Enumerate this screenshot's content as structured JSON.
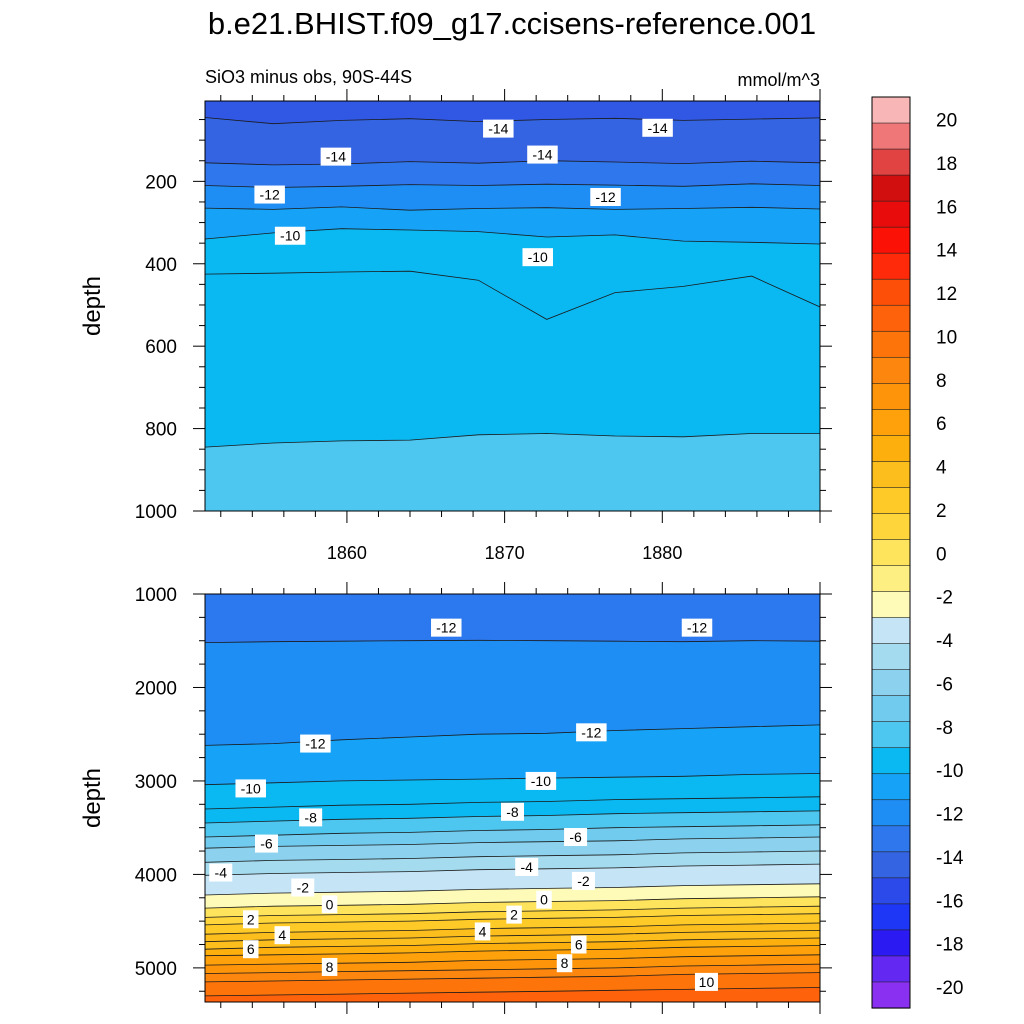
{
  "figure_title": "b.e21.BHIST.f09_g17.ccisens-reference.001",
  "colorbar": {
    "levels": [
      -20,
      -18,
      -16,
      -14,
      -12,
      -10,
      -8,
      -6,
      -4,
      -2,
      0,
      2,
      4,
      6,
      8,
      10,
      12,
      14,
      16,
      18,
      20
    ],
    "tick_labels": [
      "-20",
      "-18",
      "-16",
      "-14",
      "-12",
      "-10",
      "-8",
      "-6",
      "-4",
      "-2",
      "0",
      "2",
      "4",
      "6",
      "8",
      "10",
      "12",
      "14",
      "16",
      "18",
      "20"
    ],
    "colors": [
      "#8a30f0",
      "#6328f2",
      "#2b1bf2",
      "#1e36f5",
      "#2c4ae9",
      "#3464e2",
      "#2e77ed",
      "#1e8ef5",
      "#16a3f7",
      "#0ab8f2",
      "#4dc6f0",
      "#70cbef",
      "#8cd2ee",
      "#a4dbef",
      "#c5e5f7",
      "#fdfbb7",
      "#feef83",
      "#fee35c",
      "#fed53a",
      "#feca27",
      "#fcbe1c",
      "#fdb00d",
      "#fea10a",
      "#fd940a",
      "#fd860e",
      "#fd740a",
      "#fe620a",
      "#fe4f09",
      "#fe2a09",
      "#fb1106",
      "#e80c0c",
      "#d10f0f",
      "#e14242",
      "#ef7777",
      "#f9b6b6"
    ]
  },
  "chart_data": [
    {
      "type": "heatmap",
      "subtitle": "SiO3 minus obs, 90S-44S",
      "units": "mmol/m^3",
      "ylabel": "depth",
      "xlim": [
        1851,
        1890
      ],
      "ylim": [
        1000,
        5
      ],
      "xticks": [
        "1860",
        "1870",
        "1880"
      ],
      "yticks": [
        "200",
        "400",
        "600",
        "800",
        "1000"
      ],
      "contour_labels": [
        {
          "text": "-14",
          "x": 1869.6,
          "y": 72
        },
        {
          "text": "-14",
          "x": 1879.7,
          "y": 70
        },
        {
          "text": "-14",
          "x": 1859.3,
          "y": 140
        },
        {
          "text": "-14",
          "x": 1872.4,
          "y": 135
        },
        {
          "text": "-12",
          "x": 1855.1,
          "y": 232
        },
        {
          "text": "-12",
          "x": 1876.4,
          "y": 238
        },
        {
          "text": "-10",
          "x": 1856.4,
          "y": 332
        },
        {
          "text": "-10",
          "x": 1872.1,
          "y": 384
        }
      ],
      "fill_bands": [
        {
          "level": "-14",
          "depth": [
            45,
            60,
            52,
            48,
            55,
            50,
            47,
            52,
            49,
            46
          ]
        },
        {
          "level": "-13",
          "depth": [
            155,
            160,
            158,
            152,
            156,
            150,
            153,
            157,
            151,
            155
          ]
        },
        {
          "level": "-12",
          "depth": [
            210,
            215,
            212,
            208,
            210,
            207,
            209,
            212,
            206,
            210
          ]
        },
        {
          "level": "-11",
          "depth": [
            265,
            268,
            262,
            270,
            266,
            264,
            268,
            266,
            263,
            267
          ]
        },
        {
          "level": "-10",
          "depth": [
            340,
            325,
            315,
            318,
            322,
            335,
            330,
            345,
            348,
            352
          ]
        },
        {
          "level": "-9",
          "depth": [
            425,
            423,
            420,
            418,
            440,
            535,
            470,
            455,
            430,
            505
          ]
        },
        {
          "level": "-8",
          "depth": [
            845,
            835,
            830,
            828,
            815,
            812,
            818,
            820,
            812,
            812
          ]
        }
      ]
    },
    {
      "type": "heatmap",
      "ylabel": "depth",
      "xlim": [
        1851,
        1890
      ],
      "ylim": [
        5365,
        1000
      ],
      "yticks": [
        "1000",
        "2000",
        "3000",
        "4000",
        "5000"
      ],
      "contour_labels": [
        {
          "text": "-12",
          "x": 1866.3,
          "y": 1360
        },
        {
          "text": "-12",
          "x": 1882.2,
          "y": 1360
        },
        {
          "text": "-12",
          "x": 1858.0,
          "y": 2600
        },
        {
          "text": "-12",
          "x": 1875.5,
          "y": 2480
        },
        {
          "text": "-10",
          "x": 1853.9,
          "y": 3080
        },
        {
          "text": "-10",
          "x": 1872.3,
          "y": 3000
        },
        {
          "text": "-8",
          "x": 1857.7,
          "y": 3390
        },
        {
          "text": "-8",
          "x": 1870.5,
          "y": 3330
        },
        {
          "text": "-6",
          "x": 1854.9,
          "y": 3670
        },
        {
          "text": "-6",
          "x": 1874.5,
          "y": 3600
        },
        {
          "text": "-4",
          "x": 1852.0,
          "y": 3980
        },
        {
          "text": "-4",
          "x": 1871.4,
          "y": 3920
        },
        {
          "text": "-2",
          "x": 1857.2,
          "y": 4140
        },
        {
          "text": "-2",
          "x": 1875.0,
          "y": 4070
        },
        {
          "text": "0",
          "x": 1858.9,
          "y": 4320
        },
        {
          "text": "0",
          "x": 1872.5,
          "y": 4270
        },
        {
          "text": "2",
          "x": 1853.9,
          "y": 4480
        },
        {
          "text": "2",
          "x": 1870.6,
          "y": 4430
        },
        {
          "text": "4",
          "x": 1855.9,
          "y": 4650
        },
        {
          "text": "4",
          "x": 1868.6,
          "y": 4610
        },
        {
          "text": "6",
          "x": 1853.9,
          "y": 4800
        },
        {
          "text": "6",
          "x": 1874.7,
          "y": 4750
        },
        {
          "text": "8",
          "x": 1858.9,
          "y": 4990
        },
        {
          "text": "8",
          "x": 1873.8,
          "y": 4950
        },
        {
          "text": "10",
          "x": 1882.8,
          "y": 5150
        }
      ],
      "fill_bands": [
        {
          "level": "-12",
          "depth": [
            1520,
            1510,
            1505,
            1500,
            1495,
            1500,
            1505,
            1510,
            1500,
            1505
          ]
        },
        {
          "level": "-11",
          "depth": [
            2620,
            2600,
            2560,
            2530,
            2500,
            2490,
            2460,
            2440,
            2420,
            2400
          ]
        },
        {
          "level": "-10",
          "depth": [
            3040,
            3020,
            3000,
            2990,
            2980,
            2970,
            2960,
            2950,
            2930,
            2920
          ]
        },
        {
          "level": "-9",
          "depth": [
            3300,
            3280,
            3260,
            3250,
            3230,
            3220,
            3200,
            3190,
            3180,
            3170
          ]
        },
        {
          "level": "-8",
          "depth": [
            3450,
            3430,
            3410,
            3400,
            3380,
            3370,
            3350,
            3340,
            3330,
            3320
          ]
        },
        {
          "level": "-7",
          "depth": [
            3600,
            3580,
            3560,
            3550,
            3530,
            3520,
            3500,
            3490,
            3480,
            3470
          ]
        },
        {
          "level": "-6",
          "depth": [
            3720,
            3700,
            3690,
            3680,
            3660,
            3650,
            3640,
            3620,
            3610,
            3600
          ]
        },
        {
          "level": "-5",
          "depth": [
            3870,
            3850,
            3840,
            3830,
            3810,
            3800,
            3790,
            3770,
            3760,
            3750
          ]
        },
        {
          "level": "-4",
          "depth": [
            4010,
            3990,
            3980,
            3970,
            3950,
            3940,
            3930,
            3910,
            3900,
            3890
          ]
        },
        {
          "level": "-2",
          "depth": [
            4220,
            4200,
            4190,
            4180,
            4160,
            4150,
            4140,
            4120,
            4110,
            4100
          ]
        },
        {
          "level": "0",
          "depth": [
            4360,
            4340,
            4330,
            4320,
            4300,
            4290,
            4280,
            4260,
            4250,
            4240
          ]
        },
        {
          "level": "1",
          "depth": [
            4460,
            4440,
            4430,
            4420,
            4400,
            4390,
            4380,
            4360,
            4350,
            4340
          ]
        },
        {
          "level": "2",
          "depth": [
            4540,
            4520,
            4510,
            4500,
            4480,
            4470,
            4460,
            4440,
            4430,
            4420
          ]
        },
        {
          "level": "3",
          "depth": [
            4640,
            4620,
            4610,
            4600,
            4580,
            4570,
            4560,
            4540,
            4530,
            4520
          ]
        },
        {
          "level": "4",
          "depth": [
            4720,
            4700,
            4690,
            4680,
            4660,
            4650,
            4640,
            4620,
            4610,
            4600
          ]
        },
        {
          "level": "5",
          "depth": [
            4800,
            4780,
            4770,
            4760,
            4740,
            4730,
            4720,
            4700,
            4690,
            4680
          ]
        },
        {
          "level": "6",
          "depth": [
            4870,
            4860,
            4850,
            4840,
            4820,
            4810,
            4800,
            4780,
            4770,
            4760
          ]
        },
        {
          "level": "7",
          "depth": [
            4970,
            4960,
            4950,
            4940,
            4920,
            4910,
            4900,
            4880,
            4870,
            4860
          ]
        },
        {
          "level": "8",
          "depth": [
            5060,
            5050,
            5040,
            5030,
            5020,
            5010,
            5000,
            4980,
            4970,
            4960
          ]
        },
        {
          "level": "9",
          "depth": [
            5150,
            5140,
            5130,
            5120,
            5110,
            5100,
            5090,
            5070,
            5060,
            5050
          ]
        },
        {
          "level": "10",
          "depth": [
            5300,
            5290,
            5280,
            5270,
            5260,
            5250,
            5240,
            5230,
            5220,
            5210
          ]
        }
      ]
    }
  ]
}
